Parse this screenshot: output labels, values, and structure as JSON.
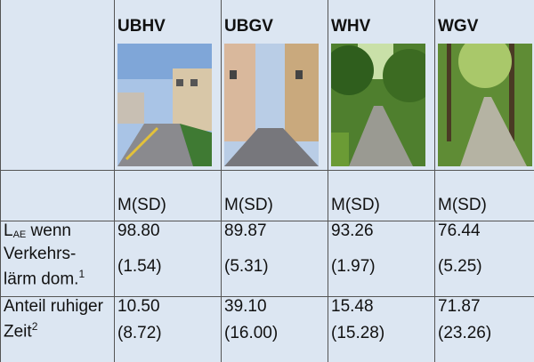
{
  "table": {
    "columns": [
      "UBHV",
      "UBGV",
      "WHV",
      "WGV"
    ],
    "stat_labels": [
      "M(SD)",
      "M(SD)",
      "M(SD)",
      "M(SD)"
    ],
    "rows": [
      {
        "label": {
          "main": "L",
          "sub": "AE",
          "rest1": " wenn Verkehrs-",
          "rest2": "lärm dom.",
          "sup": "1"
        },
        "cells": [
          [
            "98.80",
            "(1.54)"
          ],
          [
            "89.87",
            "(5.31)"
          ],
          [
            "93.26",
            "(1.97)"
          ],
          [
            "76.44",
            "(5.25)"
          ]
        ]
      },
      {
        "label": {
          "main": "Anteil ruhiger Zeit",
          "sup": "2"
        },
        "cells": [
          [
            "10.50",
            "(8.72)"
          ],
          [
            "39.10",
            "(16.00)"
          ],
          [
            "15.48",
            "(15.28)"
          ],
          [
            "71.87",
            "(23.26)"
          ]
        ]
      }
    ]
  }
}
